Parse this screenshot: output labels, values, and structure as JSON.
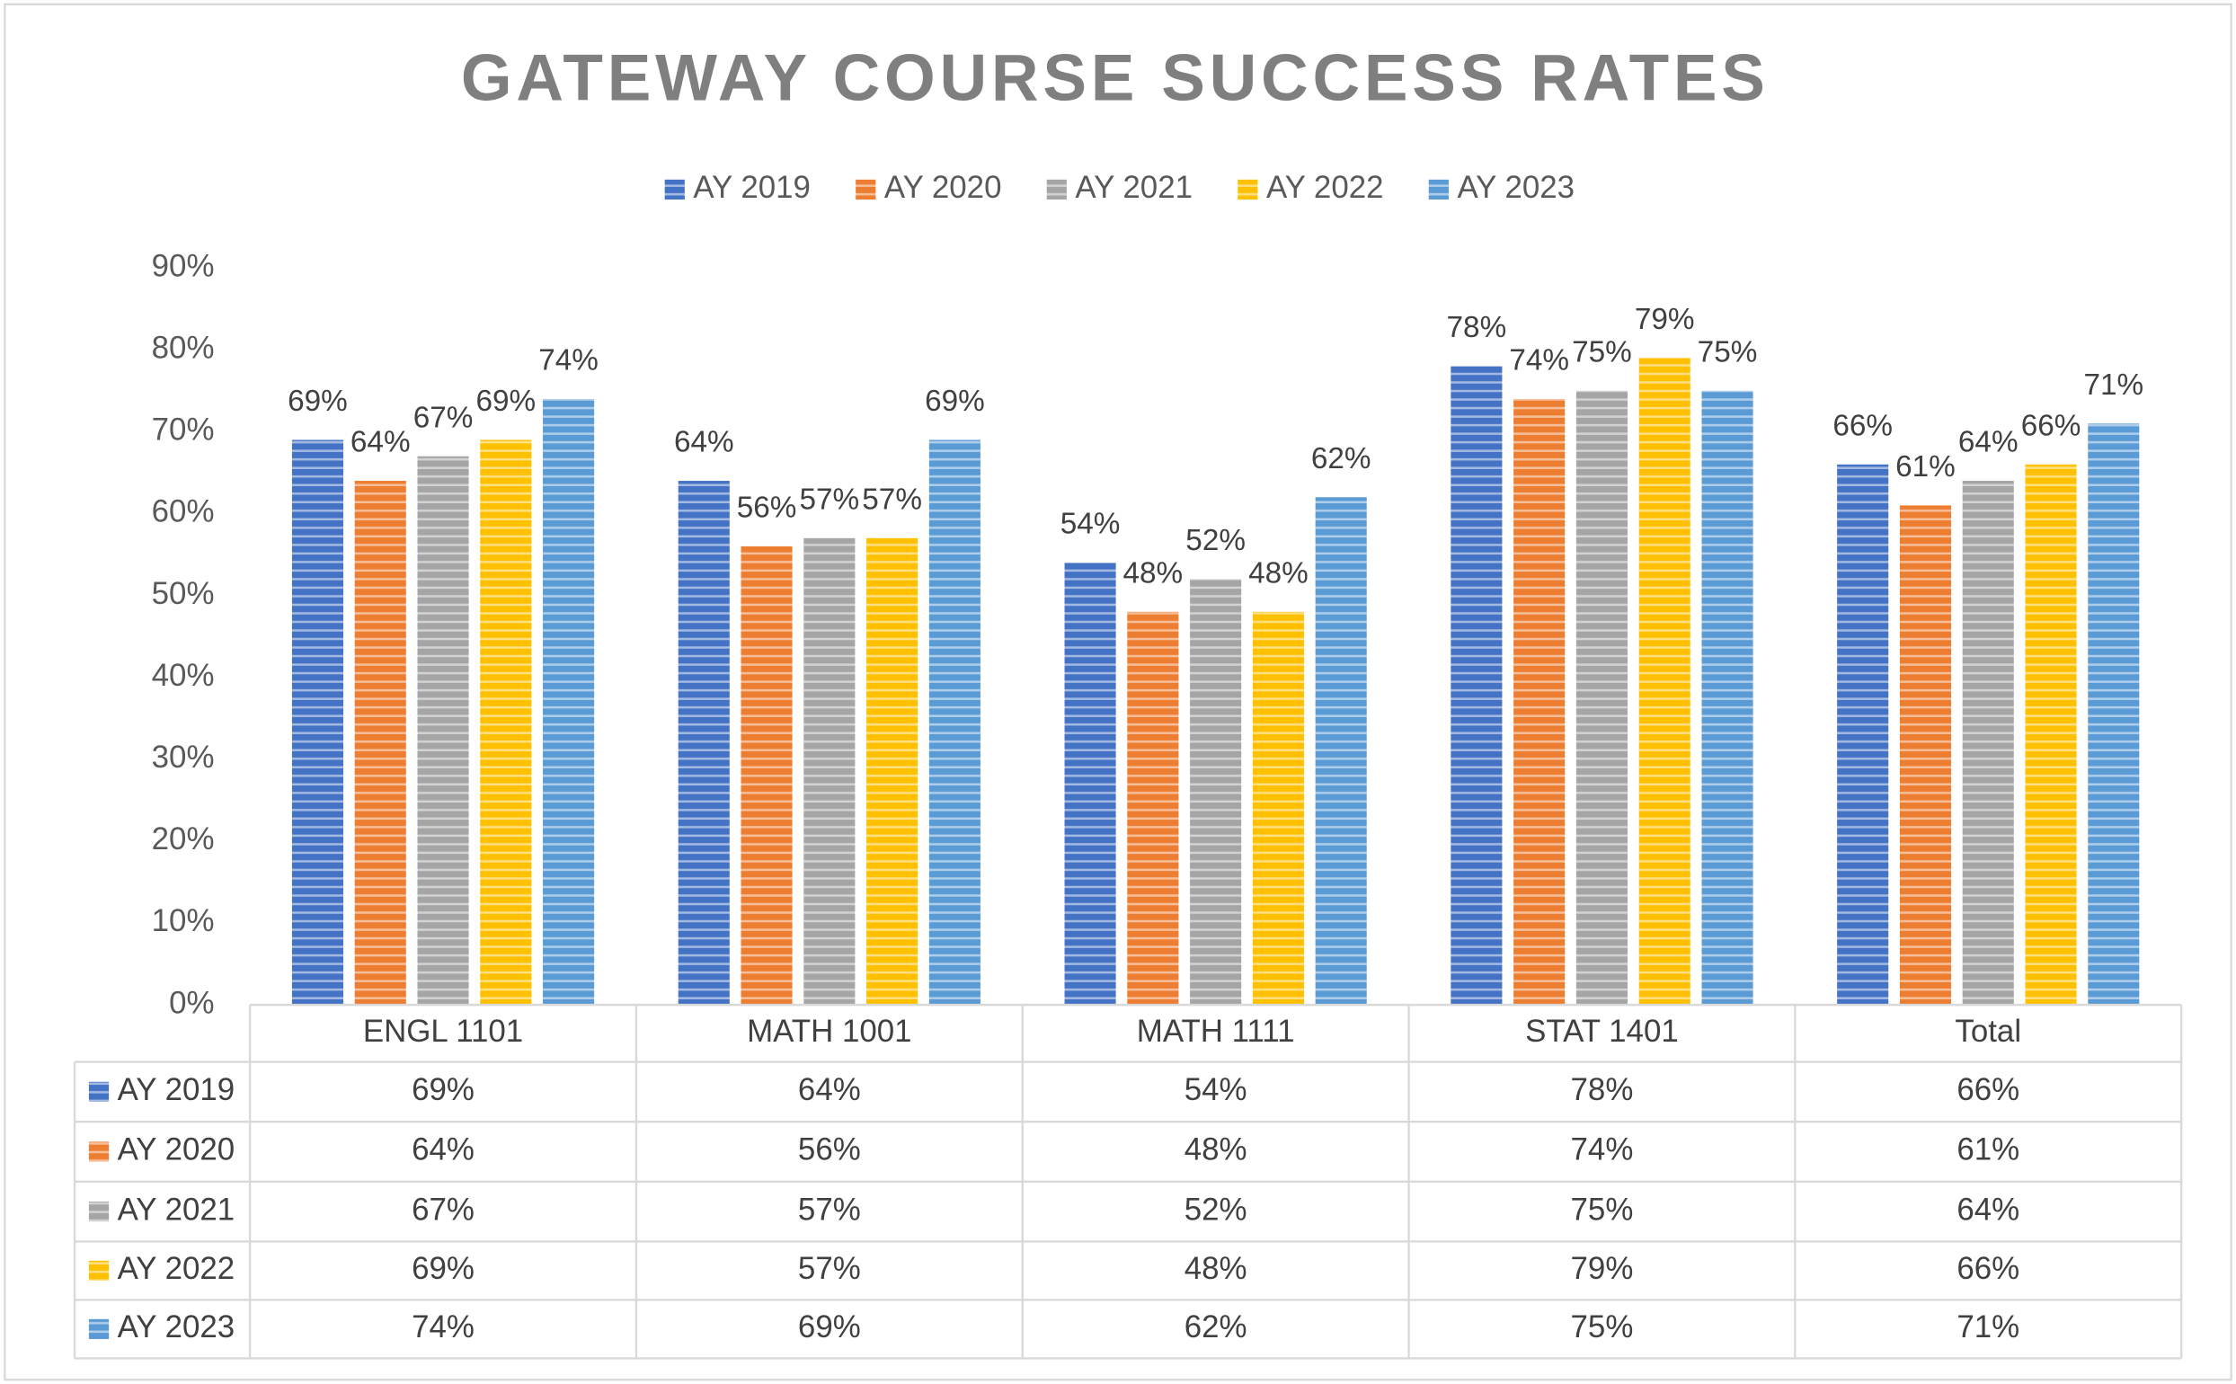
{
  "chart_data": {
    "type": "bar",
    "title": "GATEWAY COURSE SUCCESS RATES",
    "categories": [
      "ENGL 1101",
      "MATH 1001",
      "MATH 1111",
      "STAT 1401",
      "Total"
    ],
    "series": [
      {
        "name": "AY 2019",
        "color": "#4472c4",
        "values": [
          69,
          64,
          54,
          78,
          66
        ],
        "value_labels": [
          "69%",
          "64%",
          "54%",
          "78%",
          "66%"
        ]
      },
      {
        "name": "AY 2020",
        "color": "#ed7d31",
        "values": [
          64,
          56,
          48,
          74,
          61
        ],
        "value_labels": [
          "64%",
          "56%",
          "48%",
          "74%",
          "61%"
        ]
      },
      {
        "name": "AY 2021",
        "color": "#a5a5a5",
        "values": [
          67,
          57,
          52,
          75,
          64
        ],
        "value_labels": [
          "67%",
          "57%",
          "52%",
          "75%",
          "64%"
        ]
      },
      {
        "name": "AY 2022",
        "color": "#ffc000",
        "values": [
          69,
          57,
          48,
          79,
          66
        ],
        "value_labels": [
          "69%",
          "57%",
          "48%",
          "79%",
          "66%"
        ]
      },
      {
        "name": "AY 2023",
        "color": "#5b9bd5",
        "values": [
          74,
          69,
          62,
          75,
          71
        ],
        "value_labels": [
          "74%",
          "69%",
          "62%",
          "75%",
          "71%"
        ]
      }
    ],
    "ylim": [
      0,
      90
    ],
    "yticks": [
      {
        "value": 0,
        "label": "0%"
      },
      {
        "value": 10,
        "label": "10%"
      },
      {
        "value": 20,
        "label": "20%"
      },
      {
        "value": 30,
        "label": "30%"
      },
      {
        "value": 40,
        "label": "40%"
      },
      {
        "value": 50,
        "label": "50%"
      },
      {
        "value": 60,
        "label": "60%"
      },
      {
        "value": 70,
        "label": "70%"
      },
      {
        "value": 80,
        "label": "80%"
      },
      {
        "value": 90,
        "label": "90%"
      }
    ],
    "legend": "top",
    "data_table": true
  }
}
